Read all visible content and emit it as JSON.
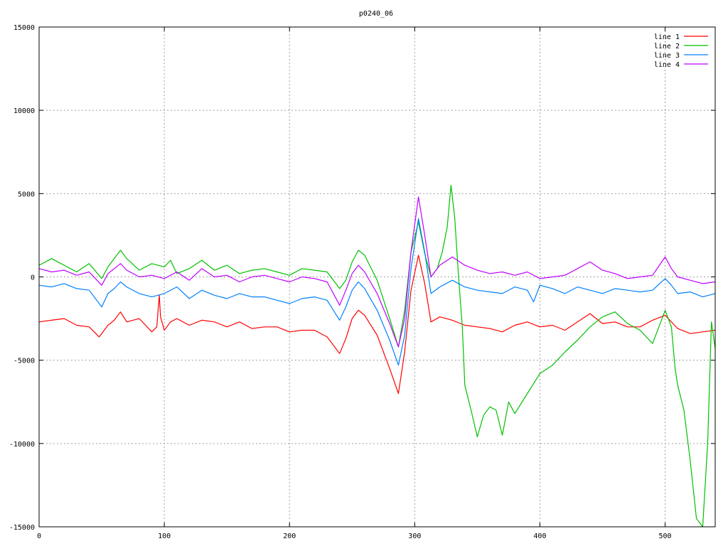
{
  "chart_data": {
    "type": "line",
    "title": "p0240_06",
    "xlabel": "",
    "ylabel": "",
    "xlim": [
      0,
      540
    ],
    "ylim": [
      -15000,
      15000
    ],
    "x_ticks": [
      0,
      100,
      200,
      300,
      400,
      500
    ],
    "y_ticks": [
      -15000,
      -10000,
      -5000,
      0,
      5000,
      10000,
      15000
    ],
    "x_tick_labels": [
      "0",
      "100",
      "200",
      "300",
      "400",
      "500"
    ],
    "y_tick_labels": [
      "-15000",
      "-10000",
      "-5000",
      "0",
      "5000",
      "10000",
      "15000"
    ],
    "grid": true,
    "legend_position": "top-right",
    "series": [
      {
        "name": "line 1",
        "color": "#ff0000",
        "points": [
          [
            0,
            -2700
          ],
          [
            10,
            -2600
          ],
          [
            20,
            -2500
          ],
          [
            30,
            -2900
          ],
          [
            40,
            -3000
          ],
          [
            48,
            -3600
          ],
          [
            55,
            -2900
          ],
          [
            60,
            -2600
          ],
          [
            65,
            -2100
          ],
          [
            70,
            -2700
          ],
          [
            80,
            -2500
          ],
          [
            90,
            -3300
          ],
          [
            94,
            -3000
          ],
          [
            96,
            -1100
          ],
          [
            97,
            -2400
          ],
          [
            100,
            -3200
          ],
          [
            105,
            -2700
          ],
          [
            110,
            -2500
          ],
          [
            120,
            -2900
          ],
          [
            130,
            -2600
          ],
          [
            140,
            -2700
          ],
          [
            150,
            -3000
          ],
          [
            160,
            -2700
          ],
          [
            170,
            -3100
          ],
          [
            180,
            -3000
          ],
          [
            190,
            -3000
          ],
          [
            200,
            -3300
          ],
          [
            210,
            -3200
          ],
          [
            220,
            -3200
          ],
          [
            230,
            -3600
          ],
          [
            240,
            -4600
          ],
          [
            245,
            -3700
          ],
          [
            250,
            -2500
          ],
          [
            255,
            -2000
          ],
          [
            260,
            -2300
          ],
          [
            270,
            -3500
          ],
          [
            280,
            -5500
          ],
          [
            287,
            -7000
          ],
          [
            292,
            -4500
          ],
          [
            297,
            -800
          ],
          [
            303,
            1300
          ],
          [
            308,
            -400
          ],
          [
            313,
            -2700
          ],
          [
            320,
            -2400
          ],
          [
            330,
            -2600
          ],
          [
            340,
            -2900
          ],
          [
            350,
            -3000
          ],
          [
            360,
            -3100
          ],
          [
            370,
            -3300
          ],
          [
            380,
            -2900
          ],
          [
            390,
            -2700
          ],
          [
            400,
            -3000
          ],
          [
            410,
            -2900
          ],
          [
            420,
            -3200
          ],
          [
            430,
            -2700
          ],
          [
            440,
            -2200
          ],
          [
            450,
            -2800
          ],
          [
            460,
            -2700
          ],
          [
            470,
            -3000
          ],
          [
            480,
            -3000
          ],
          [
            490,
            -2600
          ],
          [
            500,
            -2300
          ],
          [
            510,
            -3100
          ],
          [
            520,
            -3400
          ],
          [
            530,
            -3300
          ],
          [
            540,
            -3200
          ]
        ]
      },
      {
        "name": "line 2",
        "color": "#00c000",
        "points": [
          [
            0,
            700
          ],
          [
            10,
            1100
          ],
          [
            20,
            700
          ],
          [
            30,
            300
          ],
          [
            40,
            800
          ],
          [
            50,
            -100
          ],
          [
            55,
            600
          ],
          [
            65,
            1600
          ],
          [
            70,
            1100
          ],
          [
            80,
            400
          ],
          [
            90,
            800
          ],
          [
            100,
            600
          ],
          [
            105,
            1000
          ],
          [
            110,
            200
          ],
          [
            120,
            500
          ],
          [
            130,
            1000
          ],
          [
            140,
            400
          ],
          [
            150,
            700
          ],
          [
            160,
            200
          ],
          [
            170,
            400
          ],
          [
            180,
            500
          ],
          [
            190,
            300
          ],
          [
            200,
            100
          ],
          [
            210,
            500
          ],
          [
            220,
            400
          ],
          [
            230,
            300
          ],
          [
            240,
            -700
          ],
          [
            245,
            -200
          ],
          [
            250,
            900
          ],
          [
            255,
            1600
          ],
          [
            260,
            1300
          ],
          [
            270,
            -200
          ],
          [
            280,
            -2500
          ],
          [
            287,
            -4200
          ],
          [
            292,
            -2000
          ],
          [
            297,
            1500
          ],
          [
            303,
            3300
          ],
          [
            308,
            1400
          ],
          [
            313,
            0
          ],
          [
            318,
            500
          ],
          [
            322,
            1500
          ],
          [
            326,
            3000
          ],
          [
            329,
            5500
          ],
          [
            332,
            3500
          ],
          [
            335,
            0
          ],
          [
            338,
            -3000
          ],
          [
            340,
            -6500
          ],
          [
            345,
            -8000
          ],
          [
            350,
            -9600
          ],
          [
            355,
            -8300
          ],
          [
            360,
            -7800
          ],
          [
            365,
            -8000
          ],
          [
            370,
            -9500
          ],
          [
            375,
            -7500
          ],
          [
            380,
            -8200
          ],
          [
            390,
            -7000
          ],
          [
            400,
            -5800
          ],
          [
            410,
            -5300
          ],
          [
            420,
            -4500
          ],
          [
            430,
            -3800
          ],
          [
            440,
            -3000
          ],
          [
            450,
            -2400
          ],
          [
            460,
            -2100
          ],
          [
            470,
            -2800
          ],
          [
            480,
            -3200
          ],
          [
            485,
            -3600
          ],
          [
            490,
            -4000
          ],
          [
            495,
            -3000
          ],
          [
            500,
            -2000
          ],
          [
            505,
            -3000
          ],
          [
            508,
            -5500
          ],
          [
            510,
            -6500
          ],
          [
            515,
            -8000
          ],
          [
            520,
            -11000
          ],
          [
            525,
            -14500
          ],
          [
            530,
            -15000
          ],
          [
            534,
            -10000
          ],
          [
            537,
            -2700
          ],
          [
            540,
            -4300
          ]
        ]
      },
      {
        "name": "line 3",
        "color": "#0080ff",
        "points": [
          [
            0,
            -500
          ],
          [
            10,
            -600
          ],
          [
            20,
            -400
          ],
          [
            30,
            -700
          ],
          [
            40,
            -800
          ],
          [
            50,
            -1800
          ],
          [
            55,
            -1000
          ],
          [
            60,
            -700
          ],
          [
            65,
            -300
          ],
          [
            70,
            -600
          ],
          [
            80,
            -1000
          ],
          [
            90,
            -1200
          ],
          [
            100,
            -1000
          ],
          [
            110,
            -600
          ],
          [
            120,
            -1300
          ],
          [
            130,
            -800
          ],
          [
            140,
            -1100
          ],
          [
            150,
            -1300
          ],
          [
            160,
            -1000
          ],
          [
            170,
            -1200
          ],
          [
            180,
            -1200
          ],
          [
            190,
            -1400
          ],
          [
            200,
            -1600
          ],
          [
            210,
            -1300
          ],
          [
            220,
            -1200
          ],
          [
            230,
            -1400
          ],
          [
            240,
            -2600
          ],
          [
            245,
            -1800
          ],
          [
            250,
            -800
          ],
          [
            255,
            -300
          ],
          [
            260,
            -700
          ],
          [
            270,
            -2000
          ],
          [
            280,
            -3800
          ],
          [
            287,
            -5300
          ],
          [
            292,
            -3500
          ],
          [
            297,
            500
          ],
          [
            303,
            3500
          ],
          [
            308,
            1500
          ],
          [
            313,
            -1000
          ],
          [
            320,
            -600
          ],
          [
            330,
            -200
          ],
          [
            340,
            -600
          ],
          [
            350,
            -800
          ],
          [
            360,
            -900
          ],
          [
            370,
            -1000
          ],
          [
            380,
            -600
          ],
          [
            390,
            -800
          ],
          [
            395,
            -1500
          ],
          [
            400,
            -500
          ],
          [
            410,
            -700
          ],
          [
            420,
            -1000
          ],
          [
            430,
            -600
          ],
          [
            440,
            -800
          ],
          [
            450,
            -1000
          ],
          [
            460,
            -700
          ],
          [
            470,
            -800
          ],
          [
            480,
            -900
          ],
          [
            490,
            -800
          ],
          [
            500,
            -100
          ],
          [
            505,
            -500
          ],
          [
            510,
            -1000
          ],
          [
            520,
            -900
          ],
          [
            530,
            -1200
          ],
          [
            540,
            -1000
          ]
        ]
      },
      {
        "name": "line 4",
        "color": "#c000ff",
        "points": [
          [
            0,
            500
          ],
          [
            10,
            300
          ],
          [
            20,
            400
          ],
          [
            30,
            100
          ],
          [
            40,
            300
          ],
          [
            50,
            -500
          ],
          [
            55,
            200
          ],
          [
            65,
            800
          ],
          [
            70,
            400
          ],
          [
            80,
            0
          ],
          [
            90,
            100
          ],
          [
            100,
            -100
          ],
          [
            110,
            300
          ],
          [
            120,
            -200
          ],
          [
            130,
            500
          ],
          [
            140,
            0
          ],
          [
            150,
            100
          ],
          [
            160,
            -300
          ],
          [
            170,
            0
          ],
          [
            180,
            100
          ],
          [
            190,
            -100
          ],
          [
            200,
            -300
          ],
          [
            210,
            0
          ],
          [
            220,
            -100
          ],
          [
            230,
            -300
          ],
          [
            240,
            -1700
          ],
          [
            245,
            -800
          ],
          [
            250,
            200
          ],
          [
            255,
            700
          ],
          [
            260,
            300
          ],
          [
            270,
            -1000
          ],
          [
            280,
            -2800
          ],
          [
            287,
            -4200
          ],
          [
            292,
            -2500
          ],
          [
            297,
            1500
          ],
          [
            303,
            4800
          ],
          [
            308,
            2500
          ],
          [
            313,
            0
          ],
          [
            320,
            700
          ],
          [
            330,
            1200
          ],
          [
            340,
            700
          ],
          [
            350,
            400
          ],
          [
            360,
            200
          ],
          [
            370,
            300
          ],
          [
            380,
            100
          ],
          [
            390,
            300
          ],
          [
            400,
            -100
          ],
          [
            410,
            0
          ],
          [
            420,
            100
          ],
          [
            430,
            500
          ],
          [
            440,
            900
          ],
          [
            450,
            400
          ],
          [
            460,
            200
          ],
          [
            470,
            -100
          ],
          [
            480,
            0
          ],
          [
            490,
            100
          ],
          [
            500,
            1200
          ],
          [
            505,
            500
          ],
          [
            510,
            0
          ],
          [
            520,
            -200
          ],
          [
            530,
            -400
          ],
          [
            540,
            -300
          ]
        ]
      }
    ]
  }
}
